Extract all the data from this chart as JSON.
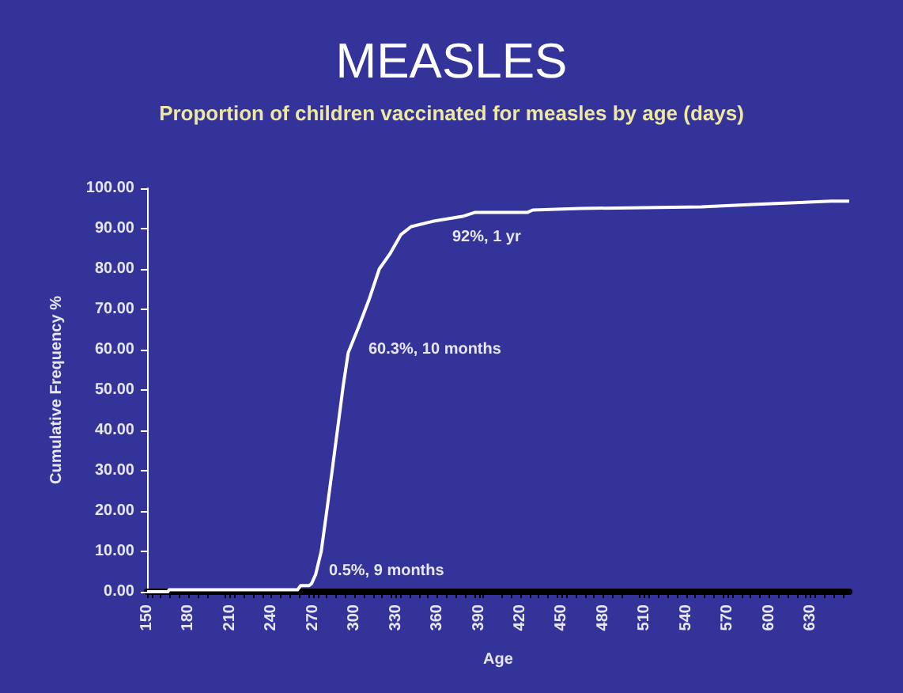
{
  "chart_data": {
    "type": "line",
    "title": "MEASLES",
    "subtitle": "Proportion of children vaccinated for measles by age (days)",
    "xlabel": "Age",
    "ylabel": "Cumulative Frequency %",
    "x": [
      150,
      165,
      166,
      259,
      261,
      267,
      269,
      272,
      276,
      280,
      284,
      288,
      292,
      295.5,
      303,
      311,
      318,
      326,
      333.6,
      341,
      356.5,
      379,
      387,
      425,
      429,
      463.5,
      551,
      587.6,
      645,
      658
    ],
    "series": [
      {
        "color": "#ffffff",
        "values": [
          0,
          0,
          0.5,
          0.5,
          1.5,
          1.5,
          2,
          4.3,
          10,
          20,
          30.3,
          40.8,
          51.3,
          59.2,
          65.6,
          72.8,
          80,
          83.9,
          88.5,
          90.5,
          91.8,
          93.1,
          94,
          94,
          94.6,
          95,
          95.4,
          96,
          96.8,
          96.8
        ]
      }
    ],
    "xlim": [
      150,
      658
    ],
    "xticks": [
      150,
      180,
      210,
      240,
      270,
      300,
      330,
      360,
      390,
      420,
      450,
      480,
      510,
      540,
      570,
      600,
      630
    ],
    "ylim": [
      0,
      100
    ],
    "yticks": [
      {
        "value": 0,
        "label": "0.00"
      },
      {
        "value": 10,
        "label": "10.00"
      },
      {
        "value": 20,
        "label": "20.00"
      },
      {
        "value": 30,
        "label": "30.00"
      },
      {
        "value": 40,
        "label": "40.00"
      },
      {
        "value": 50,
        "label": "50.00"
      },
      {
        "value": 60,
        "label": "60.00"
      },
      {
        "value": 70,
        "label": "70.00"
      },
      {
        "value": 80,
        "label": "80.00"
      },
      {
        "value": 90,
        "label": "90.00"
      },
      {
        "value": 100,
        "label": "100.00"
      }
    ],
    "annotations": [
      "0.5%, 9 months",
      "60.3%, 10 months",
      "92%, 1 yr"
    ],
    "grid": false,
    "marker": "none",
    "line_style": "solid"
  }
}
